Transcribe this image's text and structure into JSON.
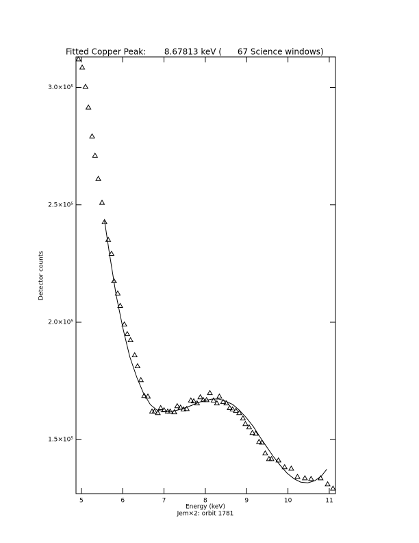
{
  "chart_data": {
    "type": "scatter",
    "title": "Fitted Copper Peak:       8.67813 keV (      67 Science windows)",
    "x_label": "Energy (keV)",
    "subtitle": "Jem×2: orbit 1781",
    "y_label": "Detector counts",
    "xlim": [
      4.87,
      11.15
    ],
    "ylim": [
      127000,
      313000
    ],
    "xticks": [
      5,
      6,
      7,
      8,
      9,
      10,
      11
    ],
    "yticks": [
      {
        "value": 150000,
        "label": "1.5×10⁵"
      },
      {
        "value": 200000,
        "label": "2.0×10⁵"
      },
      {
        "value": 250000,
        "label": "2.5×10⁵"
      },
      {
        "value": 300000,
        "label": "3.0×10⁵"
      }
    ],
    "series": [
      {
        "type": "scatter",
        "marker": "triangle",
        "color": "#000000",
        "x": [
          4.93,
          5.02,
          5.1,
          5.17,
          5.26,
          5.33,
          5.41,
          5.5,
          5.56,
          5.65,
          5.73,
          5.79,
          5.88,
          5.94,
          6.04,
          6.11,
          6.19,
          6.29,
          6.36,
          6.44,
          6.52,
          6.61,
          6.71,
          6.77,
          6.85,
          6.92,
          7.0,
          7.09,
          7.15,
          7.25,
          7.32,
          7.4,
          7.47,
          7.55,
          7.65,
          7.72,
          7.8,
          7.88,
          7.95,
          8.03,
          8.11,
          8.2,
          8.28,
          8.34,
          8.43,
          8.51,
          8.59,
          8.66,
          8.74,
          8.82,
          8.91,
          8.97,
          9.06,
          9.14,
          9.22,
          9.3,
          9.37,
          9.45,
          9.54,
          9.6,
          9.77,
          9.92,
          10.08,
          10.23,
          10.41,
          10.56,
          10.79,
          10.96,
          11.09
        ],
        "values": [
          312000,
          308500,
          300300,
          291500,
          279200,
          271000,
          261100,
          250900,
          242700,
          235100,
          229200,
          217500,
          212300,
          207000,
          199100,
          195000,
          192400,
          186000,
          181300,
          175400,
          168700,
          168400,
          162000,
          162000,
          161400,
          163500,
          162600,
          162000,
          162000,
          161700,
          164300,
          163700,
          162900,
          163100,
          166700,
          166400,
          165500,
          168100,
          166900,
          166900,
          169900,
          166700,
          165500,
          168400,
          166100,
          165500,
          163500,
          162900,
          162300,
          161400,
          159100,
          156700,
          155300,
          152900,
          152600,
          149100,
          148800,
          144200,
          141800,
          141800,
          141200,
          138300,
          137700,
          134200,
          133600,
          133300,
          133600,
          131000,
          129200
        ]
      },
      {
        "type": "line",
        "color": "#000000",
        "x": [
          5.56,
          5.68,
          5.84,
          6.01,
          6.17,
          6.34,
          6.5,
          6.67,
          6.83,
          7.0,
          7.17,
          7.33,
          7.5,
          7.67,
          7.83,
          8.0,
          8.17,
          8.33,
          8.49,
          8.66,
          8.82,
          8.99,
          9.16,
          9.32,
          9.49,
          9.65,
          9.82,
          9.98,
          10.15,
          10.31,
          10.48,
          10.65,
          10.81,
          10.94
        ],
        "values": [
          243300,
          229200,
          211700,
          197100,
          185400,
          176600,
          169900,
          164900,
          162600,
          162000,
          162000,
          162600,
          163500,
          164600,
          165800,
          166700,
          167300,
          167300,
          166400,
          165000,
          162600,
          159400,
          155600,
          151200,
          146800,
          142700,
          138900,
          135700,
          133300,
          131900,
          131600,
          132500,
          134500,
          137400
        ]
      }
    ]
  }
}
